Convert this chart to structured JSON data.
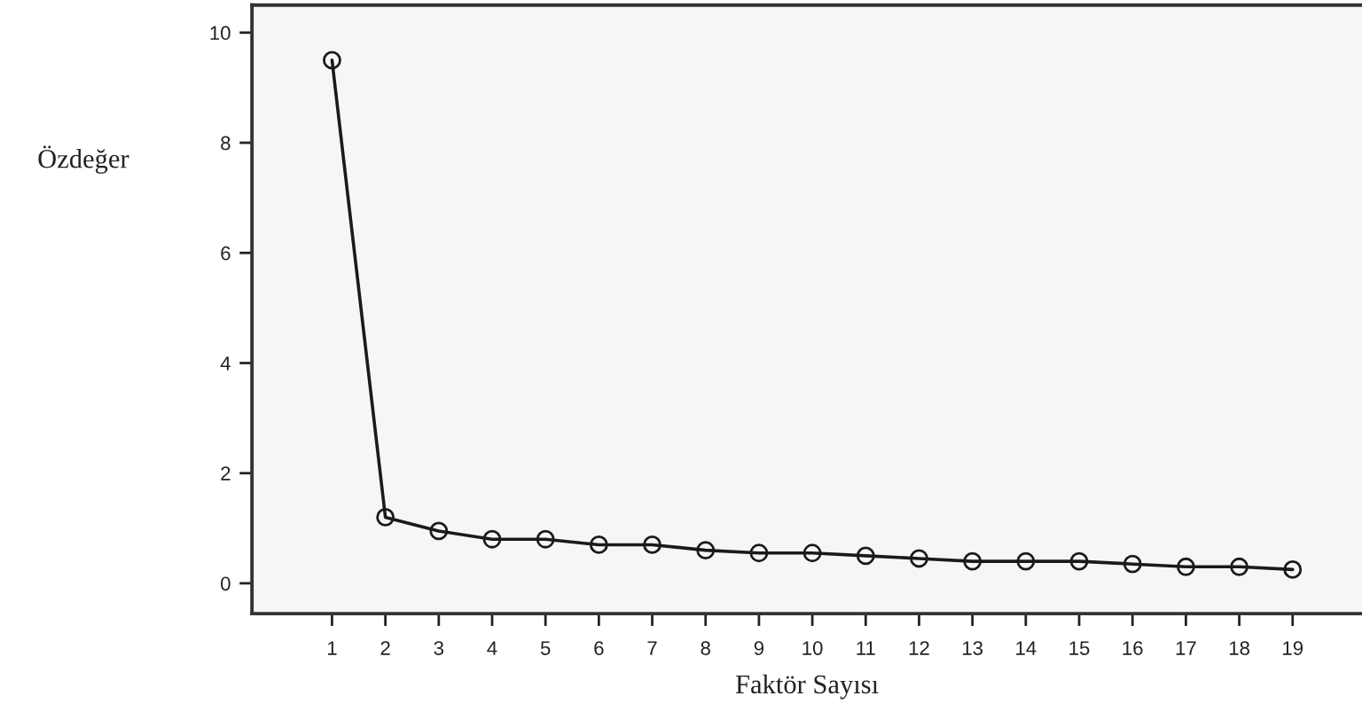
{
  "chart_data": {
    "type": "line",
    "xlabel": "Faktör Sayısı",
    "ylabel": "Özdeğer",
    "x": [
      1,
      2,
      3,
      4,
      5,
      6,
      7,
      8,
      9,
      10,
      11,
      12,
      13,
      14,
      15,
      16,
      17,
      18,
      19
    ],
    "series": [
      {
        "color": "#1a1a1a",
        "values": [
          9.5,
          1.2,
          0.95,
          0.8,
          0.8,
          0.7,
          0.7,
          0.6,
          0.55,
          0.55,
          0.5,
          0.45,
          0.4,
          0.4,
          0.4,
          0.35,
          0.3,
          0.3,
          0.25
        ]
      }
    ],
    "xlim": [
      -0.5,
      20.3
    ],
    "xticks": [
      1,
      2,
      3,
      4,
      5,
      6,
      7,
      8,
      9,
      10,
      11,
      12,
      13,
      14,
      15,
      16,
      17,
      18,
      19
    ],
    "ylim": [
      -0.55,
      10.5
    ],
    "yticks": [
      0,
      2,
      4,
      6,
      8,
      10
    ],
    "marker": "circle",
    "line_style": "solid",
    "grid": false
  }
}
